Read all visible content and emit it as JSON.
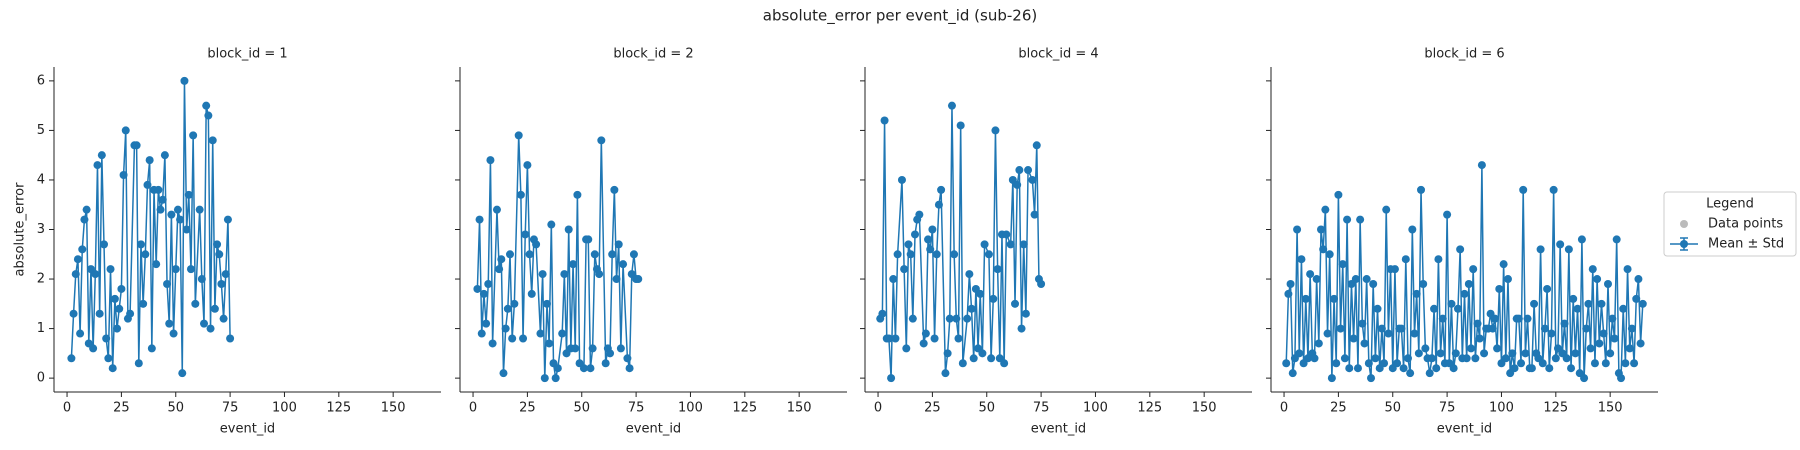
{
  "title": "absolute_error per event_id (sub-26)",
  "legend": {
    "title": "Legend",
    "entries": [
      {
        "name": "Data points",
        "color": "#bbbbbb"
      },
      {
        "name": "Mean ± Std",
        "color": "#1f77b4"
      }
    ]
  },
  "chart_data": [
    {
      "type": "line",
      "title": "block_id = 1",
      "xlabel": "event_id",
      "ylabel": "absolute_error",
      "xlim": [
        -6,
        172
      ],
      "xticks": [
        0,
        25,
        50,
        75,
        100,
        125,
        150
      ],
      "ylim": [
        -0.28,
        6.28
      ],
      "yticks": [
        0,
        1,
        2,
        3,
        4,
        5,
        6
      ],
      "x": [
        2,
        3,
        4,
        5,
        6,
        7,
        8,
        9,
        10,
        11,
        12,
        13,
        14,
        15,
        16,
        17,
        18,
        19,
        20,
        21,
        22,
        23,
        24,
        25,
        26,
        27,
        28,
        29,
        31,
        32,
        33,
        34,
        35,
        36,
        37,
        38,
        39,
        40,
        41,
        42,
        43,
        44,
        45,
        46,
        47,
        48,
        49,
        50,
        51,
        52,
        53,
        54,
        55,
        56,
        57,
        58,
        59,
        61,
        62,
        63,
        64,
        65,
        66,
        67,
        68,
        69,
        70,
        71,
        72,
        73,
        74,
        75
      ],
      "series": [
        {
          "name": "Mean ± Std",
          "color": "#1f77b4",
          "values": [
            0.4,
            1.3,
            2.1,
            2.4,
            0.9,
            2.6,
            3.2,
            3.4,
            0.7,
            2.2,
            0.6,
            2.1,
            4.3,
            1.3,
            4.5,
            2.7,
            0.8,
            0.4,
            2.2,
            0.2,
            1.6,
            1.0,
            1.4,
            1.8,
            4.1,
            5.0,
            1.2,
            1.3,
            4.7,
            4.7,
            0.3,
            2.7,
            1.5,
            2.5,
            3.9,
            4.4,
            0.6,
            3.8,
            2.3,
            3.8,
            3.4,
            3.6,
            4.5,
            1.9,
            1.1,
            3.3,
            0.9,
            2.2,
            3.4,
            3.2,
            0.1,
            6.0,
            3.0,
            3.7,
            2.2,
            4.9,
            1.5,
            3.4,
            2.0,
            1.1,
            5.5,
            5.3,
            1.0,
            4.8,
            1.4,
            2.7,
            2.5,
            1.9,
            1.2,
            2.1,
            3.2,
            0.8
          ]
        }
      ]
    },
    {
      "type": "line",
      "title": "block_id = 2",
      "xlabel": "event_id",
      "xlim": [
        -6,
        172
      ],
      "xticks": [
        0,
        25,
        50,
        75,
        100,
        125,
        150
      ],
      "ylim": [
        -0.28,
        6.28
      ],
      "yticks": [
        0,
        1,
        2,
        3,
        4,
        5,
        6
      ],
      "x": [
        2,
        3,
        4,
        5,
        6,
        7,
        8,
        9,
        11,
        12,
        13,
        14,
        15,
        16,
        17,
        18,
        19,
        21,
        22,
        23,
        24,
        25,
        26,
        27,
        28,
        29,
        31,
        32,
        33,
        34,
        35,
        36,
        37,
        38,
        39,
        41,
        42,
        43,
        44,
        45,
        46,
        47,
        48,
        49,
        51,
        52,
        53,
        54,
        55,
        56,
        57,
        58,
        59,
        61,
        62,
        63,
        64,
        65,
        66,
        67,
        68,
        69,
        71,
        72,
        73,
        74,
        75,
        76
      ],
      "series": [
        {
          "name": "Mean ± Std",
          "color": "#1f77b4",
          "values": [
            1.8,
            3.2,
            0.9,
            1.7,
            1.1,
            1.9,
            4.4,
            0.7,
            3.4,
            2.2,
            2.4,
            0.1,
            1.0,
            1.4,
            2.5,
            0.8,
            1.5,
            4.9,
            3.7,
            0.8,
            2.9,
            4.3,
            2.5,
            1.7,
            2.8,
            2.7,
            0.9,
            2.1,
            0.0,
            1.5,
            0.7,
            3.1,
            0.3,
            0.0,
            0.2,
            0.9,
            2.1,
            0.5,
            3.0,
            0.6,
            2.3,
            0.6,
            3.7,
            0.3,
            0.2,
            2.8,
            2.8,
            0.2,
            0.6,
            2.5,
            2.2,
            2.1,
            4.8,
            0.3,
            0.6,
            0.5,
            2.5,
            3.8,
            2.0,
            2.7,
            0.6,
            2.3,
            0.4,
            0.2,
            2.1,
            2.5,
            2.0,
            2.0
          ]
        }
      ]
    },
    {
      "type": "line",
      "title": "block_id = 4",
      "xlabel": "event_id",
      "xlim": [
        -6,
        172
      ],
      "xticks": [
        0,
        25,
        50,
        75,
        100,
        125,
        150
      ],
      "ylim": [
        -0.28,
        6.28
      ],
      "yticks": [
        0,
        1,
        2,
        3,
        4,
        5,
        6
      ],
      "x": [
        1,
        2,
        3,
        4,
        5,
        6,
        7,
        8,
        9,
        11,
        12,
        13,
        14,
        15,
        16,
        17,
        18,
        19,
        21,
        22,
        23,
        24,
        25,
        26,
        27,
        28,
        29,
        31,
        32,
        33,
        34,
        35,
        36,
        37,
        38,
        39,
        41,
        42,
        43,
        44,
        45,
        46,
        47,
        48,
        49,
        51,
        52,
        53,
        54,
        55,
        56,
        57,
        58,
        59,
        61,
        62,
        63,
        64,
        65,
        66,
        67,
        68,
        69,
        71,
        72,
        73,
        74,
        75
      ],
      "series": [
        {
          "name": "Mean ± Std",
          "color": "#1f77b4",
          "values": [
            1.2,
            1.3,
            5.2,
            0.8,
            0.8,
            0.0,
            2.0,
            0.8,
            2.5,
            4.0,
            2.2,
            0.6,
            2.7,
            2.5,
            1.2,
            2.9,
            3.2,
            3.3,
            0.7,
            0.9,
            2.8,
            2.6,
            3.0,
            0.8,
            2.5,
            3.5,
            3.8,
            0.1,
            0.5,
            1.2,
            5.5,
            2.5,
            1.2,
            0.8,
            5.1,
            0.3,
            1.2,
            2.1,
            1.4,
            0.4,
            1.8,
            0.6,
            1.7,
            0.5,
            2.7,
            2.5,
            0.4,
            1.6,
            5.0,
            2.2,
            0.4,
            2.9,
            0.3,
            2.9,
            2.7,
            4.0,
            1.5,
            3.9,
            4.2,
            1.0,
            2.7,
            1.3,
            4.2,
            4.0,
            3.3,
            4.7,
            2.0,
            1.9
          ]
        }
      ]
    },
    {
      "type": "line",
      "title": "block_id = 6",
      "xlabel": "event_id",
      "xlim": [
        -6,
        172
      ],
      "xticks": [
        0,
        25,
        50,
        75,
        100,
        125,
        150
      ],
      "ylim": [
        -0.28,
        6.28
      ],
      "yticks": [
        0,
        1,
        2,
        3,
        4,
        5,
        6
      ],
      "x": [
        1,
        2,
        3,
        4,
        5,
        6,
        7,
        8,
        9,
        10,
        11,
        12,
        13,
        14,
        15,
        16,
        17,
        18,
        19,
        20,
        21,
        22,
        23,
        24,
        25,
        26,
        27,
        28,
        29,
        30,
        31,
        32,
        33,
        34,
        35,
        36,
        37,
        38,
        39,
        40,
        41,
        42,
        43,
        44,
        45,
        46,
        47,
        48,
        49,
        50,
        51,
        52,
        53,
        54,
        55,
        56,
        57,
        58,
        59,
        60,
        61,
        62,
        63,
        64,
        65,
        66,
        67,
        68,
        69,
        70,
        71,
        72,
        73,
        74,
        75,
        76,
        77,
        78,
        79,
        80,
        81,
        82,
        83,
        84,
        85,
        86,
        87,
        88,
        89,
        90,
        91,
        92,
        93,
        94,
        95,
        96,
        97,
        98,
        99,
        100,
        101,
        102,
        103,
        104,
        105,
        106,
        107,
        108,
        109,
        110,
        111,
        112,
        113,
        114,
        115,
        116,
        117,
        118,
        119,
        120,
        121,
        122,
        123,
        124,
        125,
        126,
        127,
        128,
        129,
        130,
        131,
        132,
        133,
        134,
        135,
        136,
        137,
        138,
        139,
        140,
        141,
        142,
        143,
        144,
        145,
        146,
        147,
        148,
        149,
        150,
        151,
        152,
        153,
        154,
        155,
        156,
        157,
        158,
        159,
        160,
        161,
        162,
        163,
        164,
        165
      ],
      "series": [
        {
          "name": "Mean ± Std",
          "color": "#1f77b4",
          "values": [
            0.3,
            1.7,
            1.9,
            0.1,
            0.4,
            3.0,
            0.5,
            2.4,
            0.3,
            1.6,
            0.4,
            2.1,
            0.5,
            0.4,
            2.0,
            0.7,
            3.0,
            2.6,
            3.4,
            0.9,
            2.5,
            0.0,
            1.6,
            0.3,
            3.7,
            1.0,
            2.3,
            0.4,
            3.2,
            0.2,
            1.9,
            0.8,
            2.0,
            0.2,
            3.2,
            1.1,
            0.7,
            2.0,
            0.3,
            0.0,
            1.9,
            0.4,
            1.4,
            0.2,
            1.0,
            0.3,
            3.4,
            0.9,
            2.2,
            0.2,
            2.2,
            0.3,
            1.0,
            1.0,
            0.2,
            2.4,
            0.4,
            0.1,
            3.0,
            0.9,
            1.7,
            0.5,
            3.8,
            1.9,
            0.6,
            0.4,
            0.1,
            0.4,
            1.4,
            0.2,
            2.4,
            0.5,
            1.2,
            0.3,
            3.3,
            0.3,
            1.5,
            0.2,
            0.5,
            1.4,
            2.6,
            0.4,
            1.7,
            0.4,
            1.9,
            0.6,
            2.2,
            0.4,
            1.1,
            0.8,
            4.3,
            0.5,
            1.0,
            1.0,
            1.3,
            1.0,
            1.2,
            0.6,
            1.8,
            0.3,
            2.3,
            0.4,
            2.0,
            0.1,
            0.5,
            0.2,
            1.2,
            1.2,
            0.3,
            3.8,
            0.5,
            1.2,
            0.2,
            0.2,
            1.5,
            0.5,
            0.4,
            2.6,
            0.3,
            1.0,
            1.8,
            0.2,
            0.9,
            3.8,
            0.4,
            0.6,
            2.7,
            0.5,
            1.1,
            0.4,
            2.6,
            0.2,
            1.6,
            0.5,
            1.4,
            0.1,
            2.8,
            0.0,
            1.0,
            1.5,
            0.6,
            2.2,
            0.3,
            2.0,
            0.7,
            1.5,
            0.9,
            0.3,
            1.9,
            0.5,
            1.2,
            0.8,
            2.8,
            0.1,
            0.0,
            1.4,
            0.3,
            2.2,
            0.6,
            1.0,
            0.3,
            1.6,
            2.0,
            0.7,
            1.5
          ]
        }
      ]
    }
  ]
}
